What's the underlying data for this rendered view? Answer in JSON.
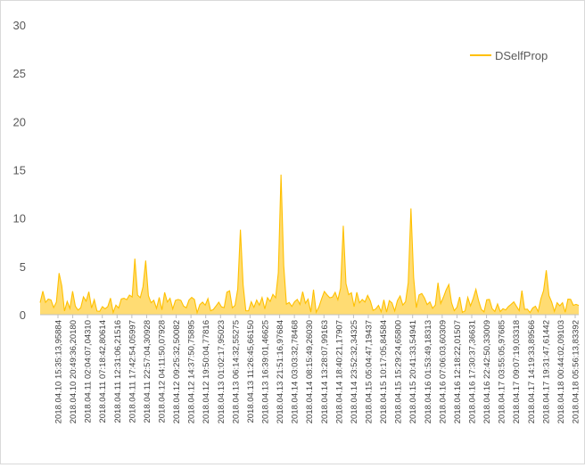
{
  "chart_data": {
    "type": "area",
    "title": "",
    "xlabel": "",
    "ylabel": "",
    "ylim": [
      0,
      30
    ],
    "yticks": [
      0,
      5,
      10,
      15,
      20,
      25,
      30
    ],
    "grid": false,
    "legend_position": "top-right",
    "series": [
      {
        "name": "DSelfProp",
        "color": "#FFC000",
        "spikes": [
          {
            "index": 7,
            "value": 4.3
          },
          {
            "index": 35,
            "value": 5.8
          },
          {
            "index": 39,
            "value": 5.6
          },
          {
            "index": 74,
            "value": 8.8
          },
          {
            "index": 89,
            "value": 14.5
          },
          {
            "index": 112,
            "value": 9.2
          },
          {
            "index": 137,
            "value": 11.0
          },
          {
            "index": 147,
            "value": 3.3
          },
          {
            "index": 187,
            "value": 4.6
          }
        ]
      }
    ],
    "categories": [
      "2018.04.10 15:35:13,95884",
      "2018.04.10 20:49:36,20180",
      "2018.04.11 02:04:07,04310",
      "2018.04.11 07:18:42,80614",
      "2018.04.11 12:31:06,21516",
      "2018.04.11 17:42:54,05997",
      "2018.04.11 22:57:04,30928",
      "2018.04.12 04:11:50,07928",
      "2018.04.12 09:25:32,50082",
      "2018.04.12 14:37:50,75895",
      "2018.04.12 19:50:04,77816",
      "2018.04.13 01:02:17,95023",
      "2018.04.13 06:14:32,55275",
      "2018.04.13 11:26:45,66150",
      "2018.04.13 16:39:01,46625",
      "2018.04.13 21:51:16,97684",
      "2018.04.14 03:03:32,78468",
      "2018.04.14 08:15:49,26030",
      "2018.04.14 13:28:07,99163",
      "2018.04.14 18:40:21,17907",
      "2018.04.14 23:52:32,34325",
      "2018.04.15 05:04:47,19437",
      "2018.04.15 10:17:05,84584",
      "2018.04.15 15:29:24,65800",
      "2018.04.15 20:41:33,54941",
      "2018.04.16 01:53:49,18313",
      "2018.04.16 07:06:03,60309",
      "2018.04.16 12:18:22,01507",
      "2018.04.16 17:30:37,36631",
      "2018.04.16 22:42:50,33009",
      "2018.04.17 03:55:05,97685",
      "2018.04.17 09:07:19,03318",
      "2018.04.17 14:19:33,89566",
      "2018.04.17 19:31:47,61442",
      "2018.04.18 00:44:02,09103",
      "2018.04.18 05:56:13,83392"
    ]
  }
}
